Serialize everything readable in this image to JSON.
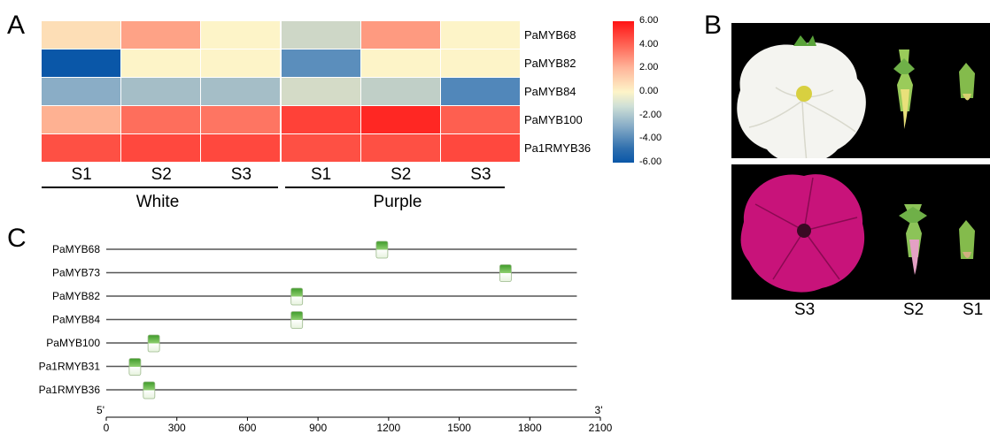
{
  "panels": {
    "a": "A",
    "b": "B",
    "c": "C"
  },
  "heatmap": {
    "genes": [
      "PaMYB68",
      "PaMYB82",
      "PaMYB84",
      "PaMYB100",
      "Pa1RMYB36"
    ],
    "columns": [
      "S1",
      "S2",
      "S3",
      "S1",
      "S2",
      "S3"
    ],
    "groups": [
      "White",
      "Purple"
    ],
    "colorbar_ticks": [
      "6.00",
      "4.00",
      "2.00",
      "0.00",
      "-2.00",
      "-4.00",
      "-6.00"
    ],
    "range": [
      -6,
      6
    ],
    "colors": {
      "high": "#ff1414",
      "mid": "#fdf4c8",
      "low": "#0a57a8"
    },
    "values": [
      [
        0.6,
        2.2,
        0.0,
        -1.4,
        2.4,
        0.0
      ],
      [
        -6.0,
        0.0,
        0.0,
        -4.4,
        0.0,
        0.0
      ],
      [
        -3.4,
        -2.6,
        -2.6,
        -1.2,
        -1.8,
        -4.6
      ],
      [
        1.8,
        3.6,
        3.4,
        4.8,
        5.5,
        4.0
      ],
      [
        4.4,
        4.6,
        4.6,
        4.4,
        4.4,
        4.6
      ]
    ]
  },
  "photos": {
    "stages": [
      "S3",
      "S2",
      "S1"
    ]
  },
  "domains": {
    "proteins": [
      {
        "name": "PaMYB68",
        "pos": 1170
      },
      {
        "name": "PaMYB73",
        "pos": 1695
      },
      {
        "name": "PaMYB82",
        "pos": 808
      },
      {
        "name": "PaMYB84",
        "pos": 808
      },
      {
        "name": "PaMYB100",
        "pos": 200
      },
      {
        "name": "Pa1RMYB31",
        "pos": 120
      },
      {
        "name": "Pa1RMYB36",
        "pos": 180
      }
    ],
    "length": 2000,
    "axis_ticks": [
      "0",
      "300",
      "600",
      "900",
      "1200",
      "1500",
      "1800",
      "2100"
    ],
    "axis_start_label": "5'",
    "axis_end_label": "3'",
    "box_color": "#4caf33"
  }
}
